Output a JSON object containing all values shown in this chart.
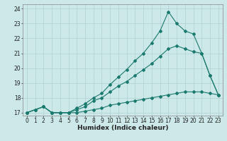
{
  "xlabel": "Humidex (Indice chaleur)",
  "xlim": [
    -0.5,
    23.5
  ],
  "ylim": [
    16.8,
    24.3
  ],
  "yticks": [
    17,
    18,
    19,
    20,
    21,
    22,
    23,
    24
  ],
  "xticks": [
    0,
    1,
    2,
    3,
    4,
    5,
    6,
    7,
    8,
    9,
    10,
    11,
    12,
    13,
    14,
    15,
    16,
    17,
    18,
    19,
    20,
    21,
    22,
    23
  ],
  "line_color": "#1a7a6e",
  "bg_color": "#cce8e8",
  "grid_color": "#b0d0d0",
  "line1_x": [
    0,
    1,
    2,
    3,
    4,
    5,
    6,
    7,
    8,
    9,
    10,
    11,
    12,
    13,
    14,
    15,
    16,
    17,
    18,
    19,
    20,
    21,
    22,
    23
  ],
  "line1_y": [
    17.0,
    17.2,
    17.4,
    17.0,
    17.0,
    17.0,
    17.0,
    17.1,
    17.2,
    17.3,
    17.5,
    17.6,
    17.7,
    17.8,
    17.9,
    18.0,
    18.1,
    18.2,
    18.3,
    18.4,
    18.4,
    18.4,
    18.3,
    18.2
  ],
  "line2_x": [
    0,
    1,
    2,
    3,
    4,
    5,
    6,
    7,
    8,
    9,
    10,
    11,
    12,
    13,
    14,
    15,
    16,
    17,
    18,
    19,
    20,
    21,
    22,
    23
  ],
  "line2_y": [
    17.0,
    17.2,
    17.4,
    17.0,
    17.0,
    17.0,
    17.2,
    17.4,
    17.8,
    18.0,
    18.4,
    18.8,
    19.1,
    19.5,
    19.9,
    20.3,
    20.8,
    21.3,
    21.5,
    21.3,
    21.1,
    21.0,
    19.5,
    18.2
  ],
  "line3_x": [
    0,
    1,
    2,
    3,
    4,
    5,
    6,
    7,
    8,
    9,
    10,
    11,
    12,
    13,
    14,
    15,
    16,
    17,
    18,
    19,
    20,
    21,
    22,
    23
  ],
  "line3_y": [
    17.0,
    17.2,
    17.4,
    17.0,
    17.0,
    17.0,
    17.3,
    17.6,
    18.0,
    18.3,
    18.9,
    19.4,
    19.9,
    20.5,
    21.0,
    21.7,
    22.5,
    23.8,
    23.0,
    22.5,
    22.3,
    21.0,
    19.5,
    18.2
  ],
  "marker": "D",
  "marker_size": 2.0,
  "line_width": 0.8,
  "tick_fontsize": 5.5,
  "xlabel_fontsize": 6.5
}
